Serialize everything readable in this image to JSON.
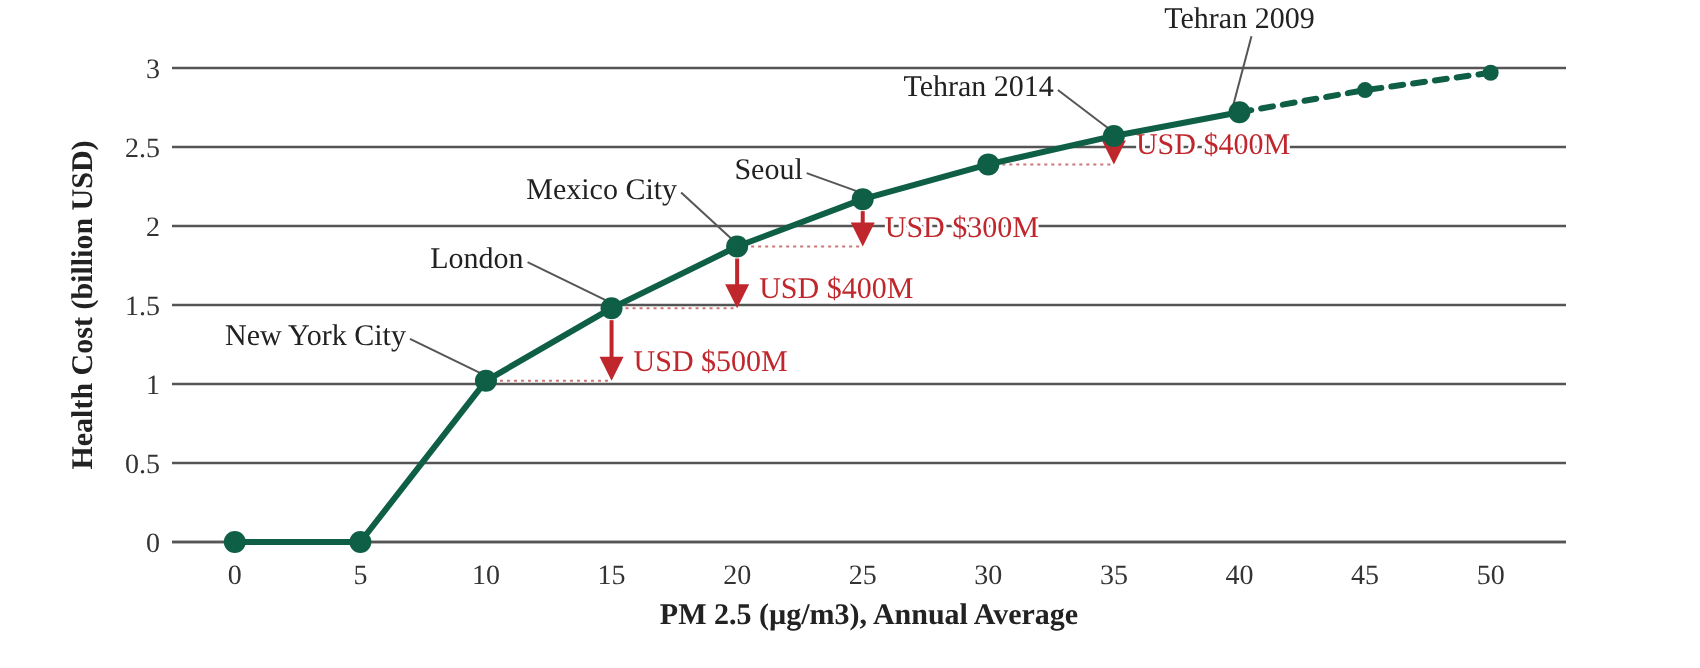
{
  "chart_data": {
    "type": "line",
    "xlabel": "PM 2.5 (µg/m3), Annual Average",
    "ylabel": "Health Cost (billion USD)",
    "xlim": [
      -2.5,
      53
    ],
    "ylim": [
      0,
      3
    ],
    "xticks": [
      0,
      5,
      10,
      15,
      20,
      25,
      30,
      35,
      40,
      45,
      50
    ],
    "yticks": [
      0,
      0.5,
      1,
      1.5,
      2,
      2.5,
      3
    ],
    "grid": "y",
    "marker": "circle",
    "series": [
      {
        "color": "#0f5e46",
        "line_style": "solid",
        "x": [
          0,
          5,
          10,
          15,
          20,
          25,
          30,
          35,
          40
        ],
        "values": [
          0,
          0,
          1.02,
          1.48,
          1.87,
          2.17,
          2.39,
          2.57,
          2.72
        ]
      },
      {
        "color": "#0f5e46",
        "line_style": "dashed",
        "x": [
          40,
          45,
          50
        ],
        "values": [
          2.72,
          2.86,
          2.97
        ]
      }
    ],
    "annotations": [
      {
        "text": "New York City",
        "x": 10,
        "y": 1.02
      },
      {
        "text": "London",
        "x": 15,
        "y": 1.48
      },
      {
        "text": "Mexico City",
        "x": 20,
        "y": 1.87
      },
      {
        "text": "Seoul",
        "x": 25,
        "y": 2.17
      },
      {
        "text": "Tehran 2014",
        "x": 35,
        "y": 2.57
      },
      {
        "text": "Tehran 2009",
        "x": 40,
        "y": 2.72
      },
      {
        "text": "USD $500M",
        "x": 15,
        "y": 1.48
      },
      {
        "text": "USD $400M",
        "x": 20,
        "y": 1.87
      },
      {
        "text": "USD $300M",
        "x": 25,
        "y": 2.17
      },
      {
        "text": "USD $400M",
        "x": 35,
        "y": 2.57
      }
    ]
  }
}
